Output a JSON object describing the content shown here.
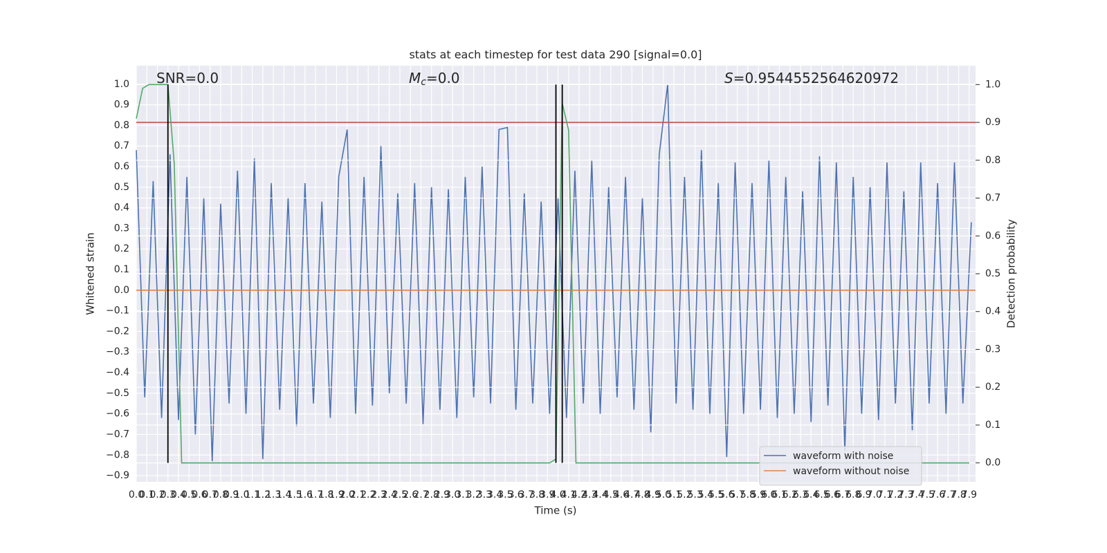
{
  "chart_data": {
    "type": "line",
    "title": "stats at each timestep for test data 290 [signal=0.0]",
    "x_label": "Time (s)",
    "y_label": "Whitened strain",
    "y2_label": "Detection probability",
    "annotations": [
      {
        "text": "SNR=0.0"
      },
      {
        "symbol": "M",
        "subscript": "c",
        "text": "=0.0"
      },
      {
        "symbol": "S",
        "text": "=0.9544552564620972"
      }
    ],
    "xlim": [
      0,
      7.96
    ],
    "ylim": [
      -0.93,
      1.09
    ],
    "y2lim": [
      -0.05,
      1.05
    ],
    "grid": true,
    "legend": "lower right",
    "xticks": [
      {
        "value": 0,
        "label": "0.0"
      },
      0.1,
      0.2,
      0.3,
      0.4,
      0.5,
      0.6,
      0.7,
      0.8,
      0.9,
      {
        "value": 1,
        "label": "1.0"
      },
      1.1,
      1.2,
      1.3,
      1.4,
      1.5,
      1.6,
      1.7,
      1.8,
      1.9,
      {
        "value": 2,
        "label": "2.0"
      },
      2.1,
      2.2,
      2.3,
      2.4,
      2.5,
      2.6,
      2.7,
      2.8,
      2.9,
      {
        "value": 3,
        "label": "3.0"
      },
      3.1,
      3.2,
      3.3,
      3.4,
      3.5,
      3.6,
      3.7,
      3.8,
      3.9,
      {
        "value": 4,
        "label": "4.0"
      },
      4.1,
      4.2,
      4.3,
      4.4,
      4.5,
      4.6,
      4.7,
      4.8,
      4.9,
      {
        "value": 5,
        "label": "5.0"
      },
      5.1,
      5.2,
      5.3,
      5.4,
      5.5,
      5.6,
      5.7,
      5.8,
      5.9,
      {
        "value": 6,
        "label": "6.0"
      },
      6.1,
      6.2,
      6.3,
      6.4,
      6.5,
      6.6,
      6.7,
      6.8,
      6.9,
      {
        "value": 7,
        "label": "7.0"
      },
      7.1,
      7.2,
      7.3,
      7.4,
      7.5,
      7.6,
      7.7,
      7.8,
      7.9
    ],
    "yticks": [
      {
        "value": 1,
        "label": "1.0"
      },
      {
        "value": 0.9,
        "label": "0.9"
      },
      {
        "value": 0.8,
        "label": "0.8"
      },
      {
        "value": 0.7,
        "label": "0.7"
      },
      {
        "value": 0.6,
        "label": "0.6"
      },
      {
        "value": 0.5,
        "label": "0.5"
      },
      {
        "value": 0.4,
        "label": "0.4"
      },
      {
        "value": 0.3,
        "label": "0.3"
      },
      {
        "value": 0.2,
        "label": "0.2"
      },
      {
        "value": 0.1,
        "label": "0.1"
      },
      {
        "value": 0,
        "label": "0.0"
      },
      {
        "value": -0.1,
        "label": "−0.1"
      },
      {
        "value": -0.2,
        "label": "−0.2"
      },
      {
        "value": -0.3,
        "label": "−0.3"
      },
      {
        "value": -0.4,
        "label": "−0.4"
      },
      {
        "value": -0.5,
        "label": "−0.5"
      },
      {
        "value": -0.6,
        "label": "−0.6"
      },
      {
        "value": -0.7,
        "label": "−0.7"
      },
      {
        "value": -0.8,
        "label": "−0.8"
      },
      {
        "value": -0.9,
        "label": "−0.9"
      }
    ],
    "y2ticks": [
      {
        "value": 0,
        "label": "0.0"
      },
      0.1,
      0.2,
      0.3,
      0.4,
      0.5,
      0.6,
      0.7,
      0.8,
      0.9,
      {
        "value": 1,
        "label": "1.0"
      }
    ],
    "series": [
      {
        "name": "waveform with noise",
        "color": "#4c72b0",
        "x": [
          0,
          0.08,
          0.16,
          0.24,
          0.32,
          0.4,
          0.48,
          0.56,
          0.64,
          0.72,
          0.8,
          0.88,
          0.96,
          1.04,
          1.12,
          1.2,
          1.28,
          1.36,
          1.44,
          1.52,
          1.6,
          1.68,
          1.76,
          1.84,
          1.92,
          2,
          2.08,
          2.16,
          2.24,
          2.32,
          2.4,
          2.48,
          2.56,
          2.64,
          2.72,
          2.8,
          2.88,
          2.96,
          3.04,
          3.12,
          3.2,
          3.28,
          3.36,
          3.44,
          3.52,
          3.6,
          3.68,
          3.76,
          3.84,
          3.92,
          4,
          4.08,
          4.16,
          4.24,
          4.32,
          4.4,
          4.48,
          4.56,
          4.64,
          4.72,
          4.8,
          4.88,
          4.96,
          5.04,
          5.12,
          5.2,
          5.28,
          5.36,
          5.44,
          5.52,
          5.6,
          5.68,
          5.76,
          5.84,
          5.92,
          6,
          6.08,
          6.16,
          6.24,
          6.32,
          6.4,
          6.48,
          6.56,
          6.64,
          6.72,
          6.8,
          6.88,
          6.96,
          7.04,
          7.12,
          7.2,
          7.28,
          7.36,
          7.44,
          7.52,
          7.6,
          7.68,
          7.76,
          7.84,
          7.92
        ],
        "values": [
          0.68,
          -0.52,
          0.53,
          -0.62,
          0.66,
          -0.63,
          0.55,
          -0.7,
          0.45,
          -0.83,
          0.42,
          -0.55,
          0.58,
          -0.6,
          0.64,
          -0.82,
          0.52,
          -0.58,
          0.45,
          -0.66,
          0.52,
          -0.55,
          0.43,
          -0.62,
          0.55,
          0.78,
          -0.6,
          0.55,
          -0.56,
          0.7,
          -0.5,
          0.47,
          -0.55,
          0.52,
          -0.65,
          0.5,
          -0.58,
          0.49,
          -0.62,
          0.55,
          -0.52,
          0.6,
          -0.55,
          0.78,
          0.79,
          -0.58,
          0.47,
          -0.55,
          0.43,
          -0.6,
          0.45,
          -0.62,
          0.58,
          -0.55,
          0.63,
          -0.6,
          0.5,
          -0.52,
          0.55,
          -0.58,
          0.45,
          -0.69,
          0.66,
          1.0,
          -0.55,
          0.55,
          -0.58,
          0.68,
          -0.6,
          0.52,
          -0.81,
          0.62,
          -0.6,
          0.52,
          -0.58,
          0.63,
          -0.62,
          0.55,
          -0.6,
          0.48,
          -0.64,
          0.65,
          -0.56,
          0.62,
          -0.78,
          0.55,
          -0.6,
          0.5,
          -0.63,
          0.62,
          -0.55,
          0.48,
          -0.68,
          0.62,
          -0.55,
          0.52,
          -0.6,
          0.62,
          -0.55,
          0.33
        ]
      },
      {
        "name": "waveform without noise",
        "color": "#dd8452",
        "x": [
          0,
          7.96
        ],
        "values": [
          0,
          0
        ]
      },
      {
        "color": "#55a868",
        "axis": "y2",
        "x": [
          0,
          0.06,
          0.12,
          0.3,
          0.36,
          0.43,
          3.92,
          3.98,
          4.04,
          4.1,
          4.17,
          7.9
        ],
        "values": [
          0.91,
          0.99,
          1.0,
          1.0,
          0.79,
          0,
          0,
          0.01,
          0.95,
          0.88,
          0,
          0
        ]
      }
    ],
    "hline": {
      "y": 0.9,
      "axis": "y2",
      "color": "#c44e52"
    },
    "vlines": [
      {
        "x": 0.3,
        "ymin": 0,
        "ymax": 1
      },
      {
        "x": 3.98,
        "ymin": 0,
        "ymax": 1
      },
      {
        "x": 4.04,
        "ymin": 0,
        "ymax": 1
      }
    ],
    "vline_color": "#000000"
  }
}
